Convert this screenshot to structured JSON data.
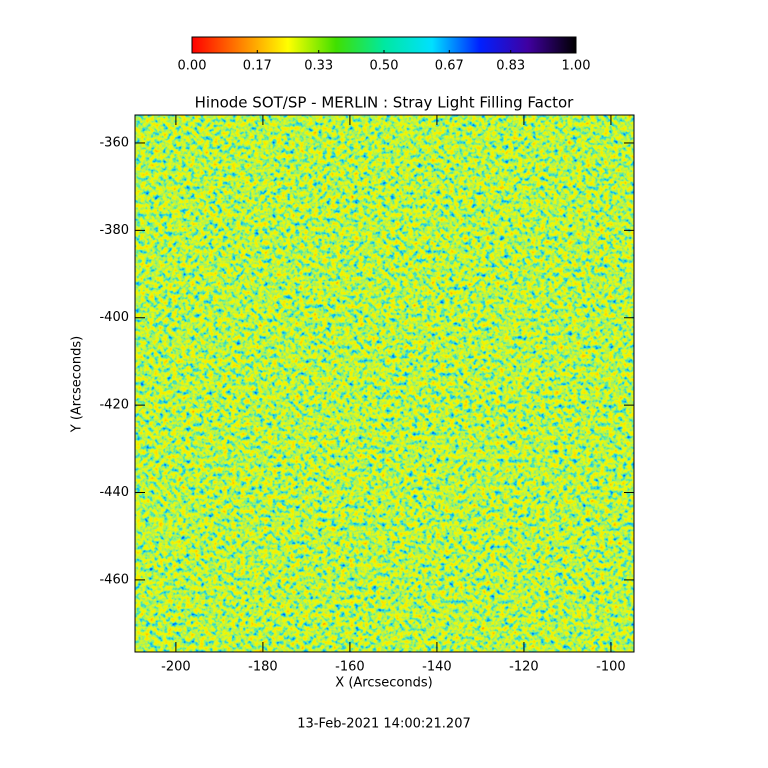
{
  "chart_data": {
    "type": "heatmap",
    "title": "Hinode SOT/SP - MERLIN : Stray Light Filling Factor",
    "x_label": "X (Arcseconds)",
    "y_label": "Y (Arcseconds)",
    "footer": "13-Feb-2021 14:00:21.207",
    "xlim": [
      -209.4,
      -94.7
    ],
    "ylim": [
      -476.5,
      -353.6
    ],
    "xticks": [
      -200,
      -180,
      -160,
      -140,
      -120,
      -100
    ],
    "yticks": [
      -460,
      -440,
      -420,
      -400,
      -380,
      -360
    ],
    "clim": [
      0,
      1
    ],
    "cticks": [
      {
        "value": 0,
        "label": "0.00"
      },
      {
        "value": 0.17,
        "label": "0.17"
      },
      {
        "value": 0.33,
        "label": "0.33"
      },
      {
        "value": 0.5,
        "label": "0.50"
      },
      {
        "value": 0.67,
        "label": "0.67"
      },
      {
        "value": 0.83,
        "label": "0.83"
      },
      {
        "value": 1,
        "label": "1.00"
      }
    ],
    "colormap": [
      "#ff0000",
      "#ff8000",
      "#ffff00",
      "#40e000",
      "#00e8a0",
      "#00e0ff",
      "#0020ff",
      "#4000a0",
      "#000000"
    ]
  }
}
